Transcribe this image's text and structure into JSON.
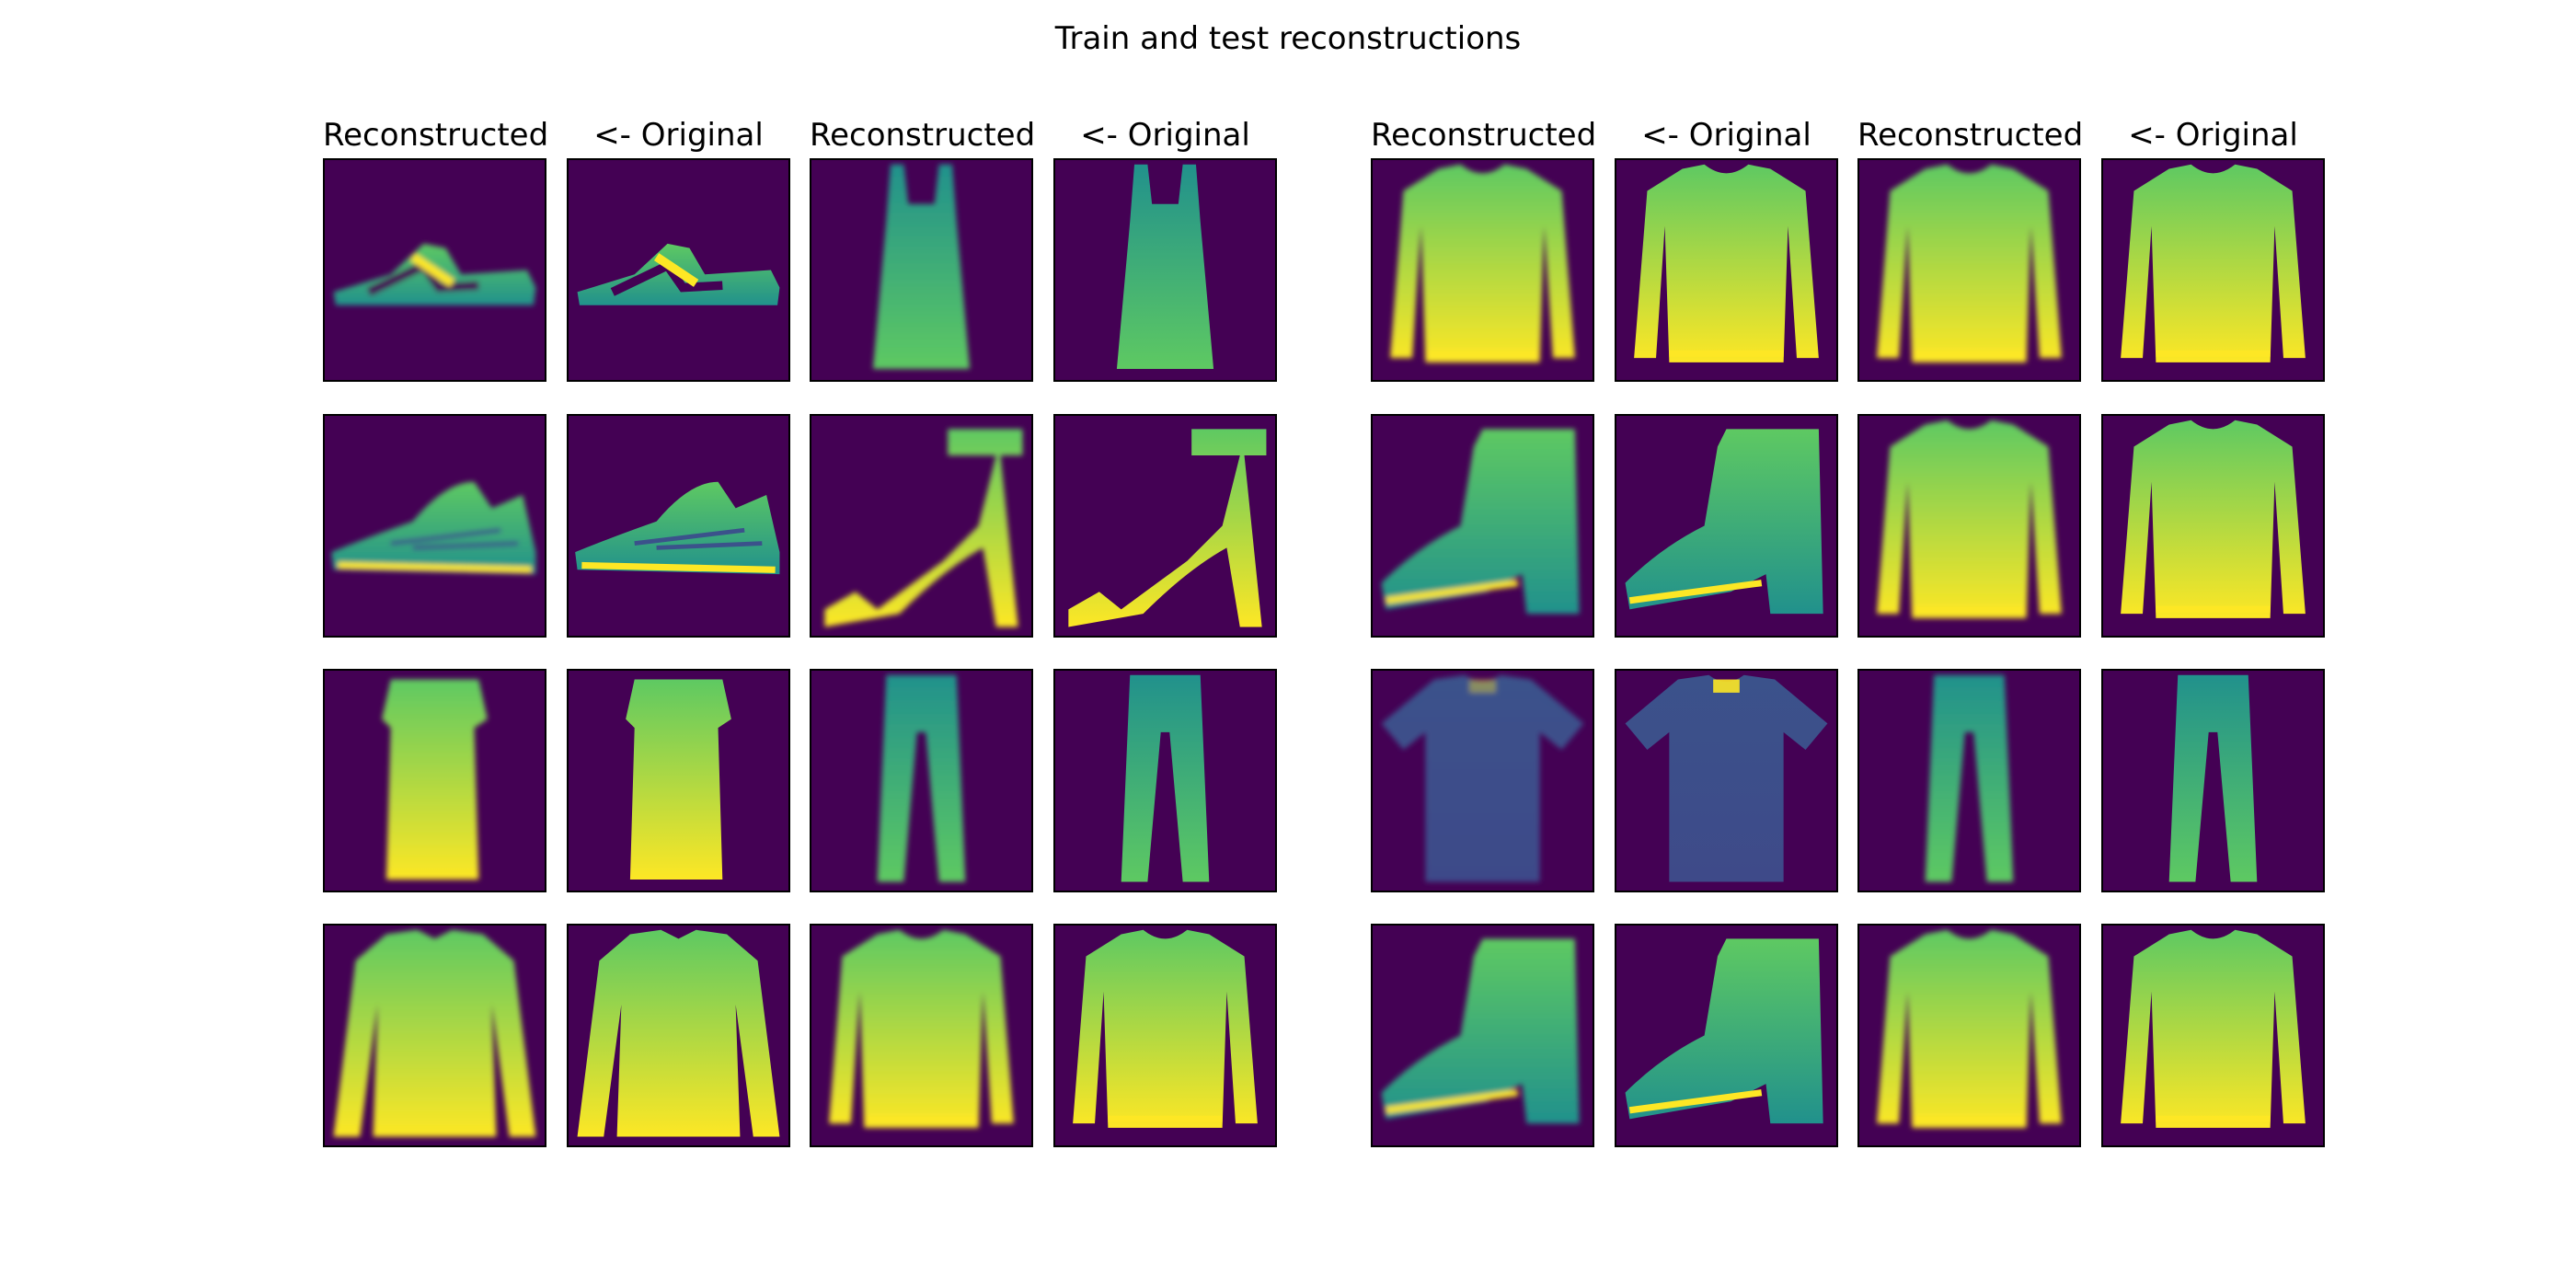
{
  "title": "Train and test reconstructions",
  "column_headers": [
    "Reconstructed",
    "<- Original",
    "Reconstructed",
    "<- Original",
    "Reconstructed",
    "<- Original",
    "Reconstructed",
    "<- Original"
  ],
  "colormap": {
    "name": "viridis",
    "background": "#440154",
    "dark_blue": "#3b528b",
    "teal": "#21918c",
    "green": "#5ec962",
    "yellow": "#fde725"
  },
  "panels": [
    {
      "row": 0,
      "col": 0,
      "role": "reconstructed",
      "item": "sandal"
    },
    {
      "row": 0,
      "col": 1,
      "role": "original",
      "item": "sandal"
    },
    {
      "row": 0,
      "col": 2,
      "role": "reconstructed",
      "item": "dress"
    },
    {
      "row": 0,
      "col": 3,
      "role": "original",
      "item": "dress"
    },
    {
      "row": 0,
      "col": 4,
      "role": "reconstructed",
      "item": "pullover"
    },
    {
      "row": 0,
      "col": 5,
      "role": "original",
      "item": "pullover"
    },
    {
      "row": 0,
      "col": 6,
      "role": "reconstructed",
      "item": "pullover"
    },
    {
      "row": 0,
      "col": 7,
      "role": "original",
      "item": "pullover"
    },
    {
      "row": 1,
      "col": 0,
      "role": "reconstructed",
      "item": "sneaker"
    },
    {
      "row": 1,
      "col": 1,
      "role": "original",
      "item": "sneaker"
    },
    {
      "row": 1,
      "col": 2,
      "role": "reconstructed",
      "item": "heel-sandal"
    },
    {
      "row": 1,
      "col": 3,
      "role": "original",
      "item": "heel-sandal"
    },
    {
      "row": 1,
      "col": 4,
      "role": "reconstructed",
      "item": "ankle-boot"
    },
    {
      "row": 1,
      "col": 5,
      "role": "original",
      "item": "ankle-boot"
    },
    {
      "row": 1,
      "col": 6,
      "role": "reconstructed",
      "item": "pullover"
    },
    {
      "row": 1,
      "col": 7,
      "role": "original",
      "item": "pullover"
    },
    {
      "row": 2,
      "col": 0,
      "role": "reconstructed",
      "item": "dress-short"
    },
    {
      "row": 2,
      "col": 1,
      "role": "original",
      "item": "dress-short"
    },
    {
      "row": 2,
      "col": 2,
      "role": "reconstructed",
      "item": "trouser"
    },
    {
      "row": 2,
      "col": 3,
      "role": "original",
      "item": "trouser"
    },
    {
      "row": 2,
      "col": 4,
      "role": "reconstructed",
      "item": "tshirt-dark"
    },
    {
      "row": 2,
      "col": 5,
      "role": "original",
      "item": "tshirt-dark"
    },
    {
      "row": 2,
      "col": 6,
      "role": "reconstructed",
      "item": "trouser"
    },
    {
      "row": 2,
      "col": 7,
      "role": "original",
      "item": "trouser"
    },
    {
      "row": 3,
      "col": 0,
      "role": "reconstructed",
      "item": "coat"
    },
    {
      "row": 3,
      "col": 1,
      "role": "original",
      "item": "coat"
    },
    {
      "row": 3,
      "col": 2,
      "role": "reconstructed",
      "item": "pullover"
    },
    {
      "row": 3,
      "col": 3,
      "role": "original",
      "item": "pullover"
    },
    {
      "row": 3,
      "col": 4,
      "role": "reconstructed",
      "item": "ankle-boot"
    },
    {
      "row": 3,
      "col": 5,
      "role": "original",
      "item": "ankle-boot"
    },
    {
      "row": 3,
      "col": 6,
      "role": "reconstructed",
      "item": "pullover"
    },
    {
      "row": 3,
      "col": 7,
      "role": "original",
      "item": "pullover"
    }
  ]
}
